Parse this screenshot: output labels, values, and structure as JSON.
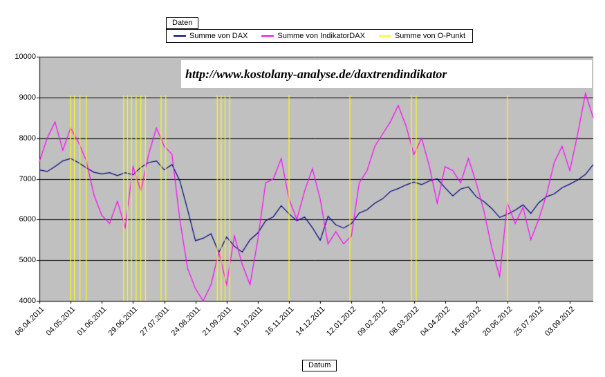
{
  "chart": {
    "field_buttons": {
      "data_field": "Daten",
      "category_field": "Datum"
    }
  },
  "chart_data": {
    "type": "line",
    "annotation": "http://www.kostolany-analyse.de/daxtrendindikator",
    "xlabel": "Datum",
    "ylabel": "",
    "ylim": [
      4000,
      10000
    ],
    "ytick_step": 1000,
    "plot_bg": "#C0C0C0",
    "grid": "horizontal-black",
    "legend_position": "top",
    "x_ticks_every": 4,
    "x_tick_labels": [
      "06.04.2011",
      "04.05.2011",
      "01.06.2011",
      "29.06.2011",
      "27.07.2011",
      "24.08.2011",
      "21.09.2011",
      "19.10.2011",
      "16.11.2011",
      "14.12.2011",
      "12.01.2012",
      "09.02.2012",
      "08.03.2012",
      "04.04.2012",
      "16.05.2012",
      "20.06.2012",
      "25.07.2012",
      "03.09.2012"
    ],
    "series": [
      {
        "name": "Summe von DAX",
        "color": "#000080",
        "values": [
          7220,
          7180,
          7300,
          7440,
          7500,
          7400,
          7270,
          7160,
          7120,
          7150,
          7080,
          7150,
          7100,
          7280,
          7400,
          7440,
          7220,
          7350,
          6950,
          6240,
          5480,
          5540,
          5650,
          5190,
          5570,
          5340,
          5200,
          5500,
          5670,
          5970,
          6070,
          6340,
          6140,
          5970,
          6060,
          5800,
          5490,
          6080,
          5870,
          5790,
          5900,
          6160,
          6240,
          6400,
          6510,
          6690,
          6760,
          6850,
          6920,
          6860,
          6950,
          7000,
          6780,
          6580,
          6750,
          6800,
          6560,
          6440,
          6270,
          6050,
          6130,
          6230,
          6360,
          6150,
          6410,
          6560,
          6630,
          6780,
          6870,
          6970,
          7110,
          7350
        ]
      },
      {
        "name": "Summe von IndikatorDAX",
        "color": "#FF00FF",
        "values": [
          7420,
          8000,
          8400,
          7700,
          8250,
          7900,
          7450,
          6600,
          6100,
          5900,
          6450,
          5800,
          7300,
          6700,
          7600,
          8250,
          7800,
          7600,
          6000,
          4800,
          4300,
          4000,
          4400,
          5200,
          4400,
          5600,
          4900,
          4400,
          5500,
          6900,
          7000,
          7500,
          6500,
          6000,
          6700,
          7250,
          6500,
          5400,
          5700,
          5400,
          5600,
          6900,
          7200,
          7800,
          8100,
          8400,
          8800,
          8300,
          7600,
          8000,
          7300,
          6400,
          7300,
          7200,
          6900,
          7500,
          6900,
          6200,
          5300,
          4600,
          6400,
          5900,
          6300,
          5500,
          6000,
          6600,
          7400,
          7800,
          7200,
          8100,
          9100,
          8500
        ]
      }
    ],
    "spike_series": {
      "name": "Summe von O-Punkt",
      "color": "#FFFF00",
      "baseline": 4000,
      "spike_value": 9050,
      "spike_x": [
        4.0,
        4.5,
        5.2,
        6.0,
        10.8,
        11.3,
        11.8,
        12.4,
        13.0,
        13.6,
        15.6,
        16.2,
        22.8,
        23.3,
        23.8,
        24.4,
        32.0,
        39.8,
        47.7,
        48.3,
        60.0
      ]
    }
  }
}
